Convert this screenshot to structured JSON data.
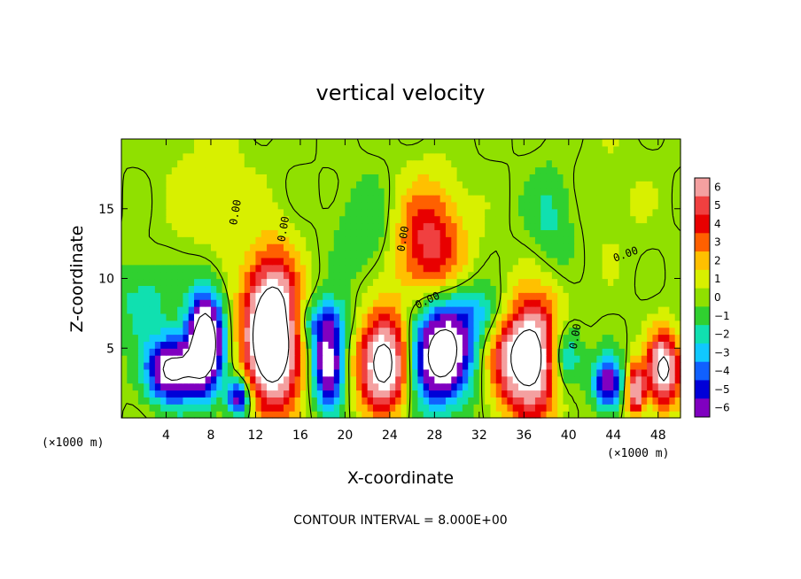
{
  "chart_data": {
    "type": "heatmap",
    "title": "vertical velocity",
    "xlabel": "X-coordinate",
    "ylabel": "Z-coordinate",
    "x_unit_label": "(×1000 m)",
    "x_ticks": [
      4,
      8,
      12,
      16,
      20,
      24,
      28,
      32,
      36,
      40,
      44,
      48
    ],
    "y_ticks": [
      5,
      10,
      15
    ],
    "xlim": [
      0,
      50
    ],
    "ylim": [
      0,
      20
    ],
    "colorbar": {
      "labels": [
        "6",
        "5",
        "4",
        "3",
        "2",
        "1",
        "0",
        "−1",
        "−2",
        "−3",
        "−4",
        "−5",
        "−6"
      ],
      "values": [
        6,
        5,
        4,
        3,
        2,
        1,
        0,
        -1,
        -2,
        -3,
        -4,
        -5,
        -6
      ],
      "colors": [
        "#f4a0a0",
        "#f04040",
        "#e80000",
        "#ff6000",
        "#ffc000",
        "#d8f000",
        "#90e000",
        "#30d030",
        "#10e0b0",
        "#10c8ff",
        "#1060ff",
        "#0000d8",
        "#8000c0"
      ]
    },
    "contour_level_label": "0.00",
    "footnote": "CONTOUR INTERVAL = 8.000E+00",
    "features": [
      {
        "x": 4.5,
        "z": 3.5,
        "sx": 1.6,
        "sz": 1.6,
        "w": -9
      },
      {
        "x": 7.5,
        "z": 5.5,
        "sx": 1.1,
        "sz": 2.5,
        "w": -11
      },
      {
        "x": 10.5,
        "z": 1.5,
        "sx": 0.7,
        "sz": 1.0,
        "w": -7
      },
      {
        "x": 13.5,
        "z": 6.0,
        "sx": 1.7,
        "sz": 3.5,
        "w": 13
      },
      {
        "x": 18.5,
        "z": 4.0,
        "sx": 1.0,
        "sz": 2.2,
        "w": -8
      },
      {
        "x": 23.5,
        "z": 4.0,
        "sx": 1.6,
        "sz": 2.4,
        "w": 10
      },
      {
        "x": 28.5,
        "z": 4.5,
        "sx": 2.0,
        "sz": 2.4,
        "w": -10
      },
      {
        "x": 27.5,
        "z": 12.5,
        "sx": 2.2,
        "sz": 3.0,
        "w": 5
      },
      {
        "x": 36.5,
        "z": 4.5,
        "sx": 2.2,
        "sz": 2.8,
        "w": 11
      },
      {
        "x": 39.5,
        "z": 4.5,
        "sx": 1.2,
        "sz": 1.8,
        "w": -6
      },
      {
        "x": 43.5,
        "z": 2.5,
        "sx": 0.9,
        "sz": 1.3,
        "w": -7
      },
      {
        "x": 46.0,
        "z": 2.0,
        "sx": 0.6,
        "sz": 1.3,
        "w": 7
      },
      {
        "x": 48.5,
        "z": 3.5,
        "sx": 1.0,
        "sz": 1.8,
        "w": 9
      },
      {
        "x": 2.0,
        "z": 8.5,
        "sx": 2.0,
        "sz": 2.0,
        "w": -2
      },
      {
        "x": 17.5,
        "z": 7.0,
        "sx": 2.0,
        "sz": 1.2,
        "w": -3
      },
      {
        "x": 32.0,
        "z": 7.5,
        "sx": 2.5,
        "sz": 1.5,
        "w": -3
      },
      {
        "x": 22.0,
        "z": 13.5,
        "sx": 2.0,
        "sz": 2.5,
        "w": -1.5
      },
      {
        "x": 38.5,
        "z": 14.5,
        "sx": 1.5,
        "sz": 2.5,
        "w": -1.8
      },
      {
        "x": 8.0,
        "z": 16.0,
        "sx": 3.0,
        "sz": 4.0,
        "w": 1.0
      },
      {
        "x": 44.0,
        "z": 15.5,
        "sx": 3.0,
        "sz": 4.0,
        "w": 0.5
      }
    ]
  }
}
